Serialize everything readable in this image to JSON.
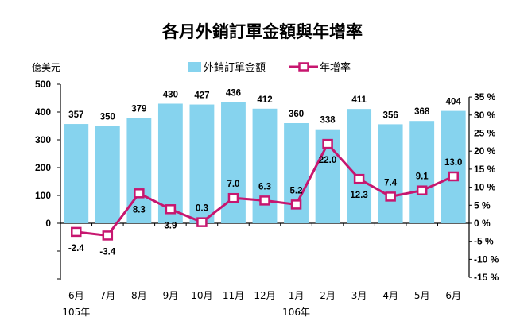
{
  "chart_data": {
    "type": "bar",
    "title": "各月外銷訂單金額與年增率",
    "ylabel_left": "億美元",
    "categories": [
      "6月",
      "7月",
      "8月",
      "9月",
      "10月",
      "11月",
      "12月",
      "1月",
      "2月",
      "3月",
      "4月",
      "5月",
      "6月"
    ],
    "year_labels": [
      {
        "text": "105年",
        "at_category": 0
      },
      {
        "text": "106年",
        "at_category": 7
      }
    ],
    "series": [
      {
        "name": "外銷訂單金額",
        "type": "bar",
        "axis": "left",
        "values": [
          357,
          350,
          379,
          430,
          427,
          436,
          412,
          360,
          338,
          411,
          356,
          368,
          404
        ]
      },
      {
        "name": "年增率",
        "type": "line",
        "axis": "right",
        "values": [
          -2.4,
          -3.4,
          8.3,
          3.9,
          0.3,
          7.0,
          6.3,
          5.2,
          22.0,
          12.3,
          7.4,
          9.1,
          13.0
        ]
      }
    ],
    "bar_labels": [
      "357",
      "350",
      "379",
      "430",
      "427",
      "436",
      "412",
      "360",
      "338",
      "411",
      "356",
      "368",
      "404"
    ],
    "line_labels": [
      "-2.4",
      "-3.4",
      "8.3",
      "3.9",
      "0.3",
      "7.0",
      "6.3",
      "5.2",
      "22.0",
      "12.3",
      "7.4",
      "9.1",
      "13.0"
    ],
    "left_axis": {
      "ylim": [
        -200,
        500
      ],
      "ticks": [
        "500",
        "400",
        "300",
        "200",
        "100",
        "0"
      ]
    },
    "right_axis": {
      "ylim": [
        -15,
        35
      ],
      "ticks": [
        "35 %",
        "30 %",
        "25 %",
        "20 %",
        "15 %",
        "10 %",
        "5 %",
        "0 %",
        "-5 %",
        "-10 %",
        "-15 %"
      ]
    },
    "legend": {
      "position": "top-right",
      "bar_label": "外銷訂單金額",
      "line_label": "年增率"
    },
    "colors": {
      "bar": "#86D3EE",
      "line": "#C7166F",
      "marker_fill": "#ffffff"
    },
    "grid": false
  }
}
